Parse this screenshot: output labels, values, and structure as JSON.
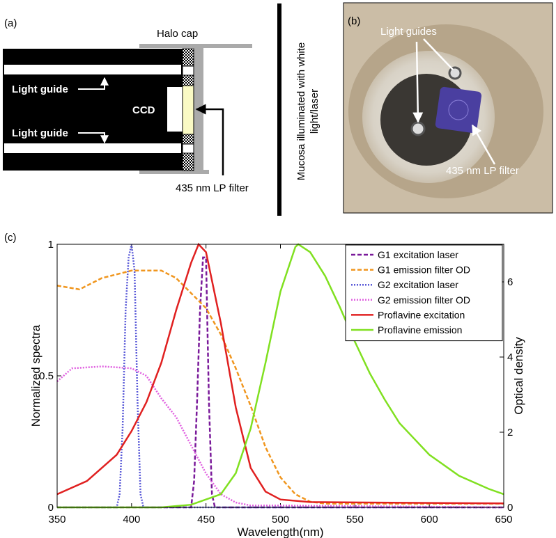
{
  "diagram_a": {
    "label": "(a)",
    "halo_cap": "Halo cap",
    "light_guide_top": "Light guide",
    "light_guide_bottom": "Light guide",
    "ccd": "CCD",
    "filter": "435 nm LP filter",
    "mucosa_line1": "Mucosa illuminated with white",
    "mucosa_line2": "light/laser"
  },
  "photo_b": {
    "label": "(b)",
    "light_guides": "Light guides",
    "filter": "435 nm LP filter"
  },
  "panel_c_label": "(c)",
  "chart_data": {
    "type": "line",
    "xlabel": "Wavelength(nm)",
    "ylabel": "Normalized spectra",
    "y2label": "Optical density",
    "xlim": [
      350,
      650
    ],
    "xticks": [
      350,
      400,
      450,
      500,
      550,
      600,
      650
    ],
    "ylim": [
      0,
      1
    ],
    "yticks": [
      0,
      0.5,
      1
    ],
    "y2lim": [
      0,
      7
    ],
    "y2ticks": [
      0,
      2,
      4,
      6
    ],
    "legend": "upper right",
    "series": [
      {
        "name": "G1 excitation laser",
        "color": "#7a1a9a",
        "style": "dashed",
        "x": [
          350,
          440,
          442,
          444,
          446,
          448,
          450,
          452,
          454,
          456,
          650
        ],
        "values": [
          0,
          0,
          0.1,
          0.4,
          0.75,
          0.95,
          0.95,
          0.4,
          0.05,
          0,
          0
        ]
      },
      {
        "name": "G1 emission filter OD",
        "color": "#f0961e",
        "style": "dashed",
        "axis": "y2",
        "x": [
          350,
          365,
          380,
          400,
          420,
          430,
          440,
          450,
          460,
          470,
          480,
          490,
          500,
          510,
          520,
          530,
          650
        ],
        "values": [
          5.9,
          5.8,
          6.1,
          6.3,
          6.3,
          6.1,
          5.7,
          5.3,
          4.6,
          3.7,
          2.7,
          1.6,
          0.8,
          0.35,
          0.15,
          0.1,
          0.1
        ]
      },
      {
        "name": "G2 excitation laser",
        "color": "#5a5ad8",
        "style": "dotted",
        "x": [
          350,
          390,
          392,
          394,
          396,
          398,
          400,
          402,
          404,
          406,
          408,
          650
        ],
        "values": [
          0,
          0,
          0.05,
          0.3,
          0.75,
          0.95,
          1,
          0.9,
          0.4,
          0.05,
          0,
          0
        ]
      },
      {
        "name": "G2 emission filter OD",
        "color": "#e060e0",
        "style": "dotted",
        "axis": "y2",
        "x": [
          350,
          360,
          380,
          400,
          410,
          420,
          430,
          440,
          450,
          460,
          470,
          480,
          500,
          650
        ],
        "values": [
          3.35,
          3.7,
          3.75,
          3.7,
          3.5,
          2.9,
          2.4,
          1.65,
          0.9,
          0.35,
          0.13,
          0.05,
          0.05,
          0
        ]
      },
      {
        "name": "Proflavine excitation",
        "color": "#e02020",
        "style": "solid",
        "x": [
          350,
          370,
          390,
          400,
          410,
          420,
          430,
          440,
          445,
          450,
          460,
          470,
          480,
          490,
          500,
          520,
          650
        ],
        "values": [
          0.05,
          0.1,
          0.2,
          0.29,
          0.4,
          0.55,
          0.75,
          0.93,
          1,
          0.97,
          0.7,
          0.38,
          0.15,
          0.06,
          0.03,
          0.02,
          0.015
        ]
      },
      {
        "name": "Proflavine emission",
        "color": "#80e020",
        "style": "solid",
        "x": [
          350,
          420,
          440,
          460,
          470,
          480,
          490,
          500,
          510,
          512,
          520,
          530,
          540,
          550,
          560,
          570,
          580,
          590,
          600,
          620,
          640,
          650
        ],
        "values": [
          0,
          0,
          0.01,
          0.05,
          0.13,
          0.3,
          0.55,
          0.82,
          0.99,
          1,
          0.97,
          0.88,
          0.76,
          0.63,
          0.51,
          0.41,
          0.32,
          0.26,
          0.2,
          0.12,
          0.07,
          0.05
        ]
      }
    ]
  }
}
